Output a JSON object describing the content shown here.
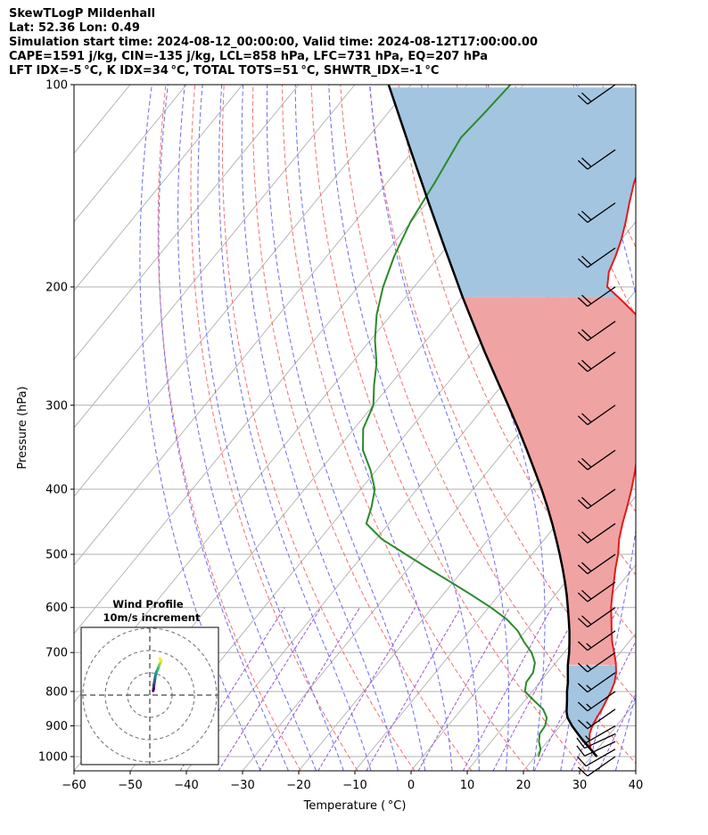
{
  "header": {
    "line1": "SkewTLogP Mildenhall",
    "line2": "Lat: 52.36   Lon: 0.49",
    "line3": "Simulation start time: 2024-08-12_00:00:00, Valid time: 2024-08-12T17:00:00.00",
    "line4": "CAPE=1591 j/kg, CIN=-135 j/kg, LCL=858 hPa, LFC=731 hPa, EQ=207 hPa",
    "line5": "LFT IDX=-5 °C, K IDX=34 °C, TOTAL TOTS=51 °C, SHWTR_IDX=-1 °C"
  },
  "chart_data": {
    "type": "line",
    "xlabel": "Temperature ( °C)",
    "ylabel": "Pressure (hPa)",
    "xlim": [
      -60,
      40
    ],
    "ylim": [
      1050,
      100
    ],
    "y_scale": "log",
    "x_ticks": [
      "−60",
      "−50",
      "−40",
      "−30",
      "−20",
      "−10",
      "0",
      "10",
      "20",
      "30",
      "40"
    ],
    "x_tick_values": [
      -60,
      -50,
      -40,
      -30,
      -20,
      -10,
      0,
      10,
      20,
      30,
      40
    ],
    "y_ticks": [
      "1000",
      "900",
      "800",
      "700",
      "600",
      "500",
      "400",
      "300",
      "200",
      "100"
    ],
    "y_tick_values": [
      1000,
      900,
      800,
      700,
      600,
      500,
      400,
      300,
      200,
      100
    ],
    "grid": true,
    "colors": {
      "temperature": "#e41a1c",
      "dewpoint": "#2a8a2a",
      "parcel": "#000000",
      "cape_fill": "#f0a3a3",
      "cin_fill": "#a3c5e0",
      "dry_adiabats": "#f07070",
      "moist_adiabats": "#6b6bf0",
      "mixing_ratio": "#9b59d0",
      "isotherms": "#b0b0b0"
    },
    "series": [
      {
        "role": "temperature",
        "points": [
          [
            1000,
            31
          ],
          [
            975,
            28.8
          ],
          [
            950,
            27.5
          ],
          [
            925,
            26.4
          ],
          [
            900,
            25.7
          ],
          [
            875,
            25.3
          ],
          [
            850,
            25
          ],
          [
            825,
            24.5
          ],
          [
            800,
            24
          ],
          [
            775,
            23.3
          ],
          [
            750,
            22.2
          ],
          [
            725,
            20.7
          ],
          [
            700,
            18.9
          ],
          [
            675,
            17
          ],
          [
            650,
            15.3
          ],
          [
            625,
            13.6
          ],
          [
            600,
            11.8
          ],
          [
            575,
            10.2
          ],
          [
            550,
            8.6
          ],
          [
            525,
            6.9
          ],
          [
            500,
            5.3
          ],
          [
            475,
            3.3
          ],
          [
            450,
            1.6
          ],
          [
            425,
            0
          ],
          [
            400,
            -1.8
          ],
          [
            375,
            -3.9
          ],
          [
            350,
            -6.3
          ],
          [
            325,
            -8.9
          ],
          [
            300,
            -11.8
          ],
          [
            275,
            -14.9
          ],
          [
            250,
            -18.7
          ],
          [
            240,
            -20.6
          ],
          [
            230,
            -23
          ],
          [
            220,
            -26.4
          ],
          [
            210,
            -30.8
          ],
          [
            200,
            -35.6
          ],
          [
            190,
            -37.5
          ],
          [
            180,
            -38.6
          ],
          [
            170,
            -40
          ],
          [
            160,
            -41.8
          ],
          [
            150,
            -43.9
          ],
          [
            140,
            -46
          ],
          [
            130,
            -47.7
          ],
          [
            120,
            -49.4
          ],
          [
            110,
            -50.6
          ],
          [
            100,
            -51.9
          ]
        ]
      },
      {
        "role": "dewpoint",
        "points": [
          [
            1000,
            20.6
          ],
          [
            975,
            19.9
          ],
          [
            950,
            18.5
          ],
          [
            925,
            17.5
          ],
          [
            900,
            17.3
          ],
          [
            875,
            16.4
          ],
          [
            850,
            14.5
          ],
          [
            825,
            11.6
          ],
          [
            800,
            8.7
          ],
          [
            775,
            7.6
          ],
          [
            750,
            7.4
          ],
          [
            725,
            6.3
          ],
          [
            700,
            4.2
          ],
          [
            675,
            1.3
          ],
          [
            650,
            -1.4
          ],
          [
            625,
            -5
          ],
          [
            600,
            -9.6
          ],
          [
            575,
            -14.8
          ],
          [
            550,
            -20.4
          ],
          [
            525,
            -26.4
          ],
          [
            500,
            -32.5
          ],
          [
            475,
            -38.9
          ],
          [
            450,
            -44
          ],
          [
            425,
            -45.5
          ],
          [
            400,
            -47.5
          ],
          [
            375,
            -51
          ],
          [
            350,
            -55.3
          ],
          [
            325,
            -58.4
          ],
          [
            300,
            -60
          ],
          [
            280,
            -62.8
          ],
          [
            260,
            -65.5
          ],
          [
            240,
            -69.2
          ],
          [
            220,
            -72.6
          ],
          [
            200,
            -75.5
          ],
          [
            180,
            -78
          ],
          [
            160,
            -80.1
          ],
          [
            140,
            -81.5
          ],
          [
            120,
            -83.4
          ],
          [
            110,
            -82.8
          ],
          [
            100,
            -82.3
          ]
        ]
      },
      {
        "role": "parcel",
        "points": [
          [
            1000,
            31
          ],
          [
            975,
            28.8
          ],
          [
            950,
            26.5
          ],
          [
            925,
            24.3
          ],
          [
            900,
            22.1
          ],
          [
            875,
            20.1
          ],
          [
            858,
            19.1
          ],
          [
            825,
            17.5
          ],
          [
            800,
            16.2
          ],
          [
            775,
            15
          ],
          [
            750,
            13.6
          ],
          [
            731,
            12.5
          ],
          [
            700,
            10.9
          ],
          [
            675,
            9.4
          ],
          [
            650,
            7.8
          ],
          [
            625,
            6
          ],
          [
            600,
            4.1
          ],
          [
            575,
            2.1
          ],
          [
            550,
            -0.1
          ],
          [
            525,
            -2.5
          ],
          [
            500,
            -5.1
          ],
          [
            475,
            -7.9
          ],
          [
            450,
            -10.9
          ],
          [
            425,
            -14.2
          ],
          [
            400,
            -17.8
          ],
          [
            375,
            -21.8
          ],
          [
            350,
            -26.1
          ],
          [
            325,
            -30.8
          ],
          [
            300,
            -36
          ],
          [
            275,
            -41.7
          ],
          [
            250,
            -47.9
          ],
          [
            225,
            -54.6
          ],
          [
            207,
            -59.9
          ],
          [
            200,
            -62
          ],
          [
            175,
            -70.2
          ],
          [
            150,
            -79.6
          ],
          [
            125,
            -90.6
          ],
          [
            100,
            -104
          ]
        ]
      }
    ],
    "cin_layers": [
      [
        1000,
        731
      ],
      [
        207,
        100
      ]
    ],
    "cape_layer": [
      731,
      207
    ],
    "dry_adiabats_theta_K": [
      250,
      260,
      270,
      280,
      290,
      300,
      310,
      320,
      330,
      340,
      350,
      360,
      370,
      380,
      390,
      400,
      410,
      420,
      430,
      440,
      450,
      460,
      470,
      480
    ],
    "moist_adiabats_thetaw_C": [
      -30,
      -25,
      -20,
      -15,
      -10,
      -5,
      0,
      5,
      10,
      15,
      20,
      25,
      30,
      35,
      40
    ],
    "mixing_ratio_gkg": [
      0.1,
      0.2,
      0.4,
      1,
      2,
      4,
      7,
      10,
      16,
      24,
      32
    ],
    "wind_barbs": {
      "pressures": [
        1000,
        975,
        950,
        925,
        900,
        850,
        800,
        750,
        700,
        650,
        600,
        550,
        500,
        450,
        400,
        350,
        300,
        250,
        225,
        200,
        175,
        150,
        125,
        100
      ],
      "speed_kt": [
        10,
        12,
        12,
        15,
        15,
        15,
        15,
        15,
        18,
        18,
        20,
        20,
        20,
        20,
        20,
        20,
        20,
        20,
        20,
        20,
        20,
        20,
        20,
        20
      ],
      "direction_deg": [
        235,
        240,
        245,
        245,
        240,
        235,
        235,
        235,
        235,
        235,
        235,
        235,
        235,
        235,
        235,
        235,
        235,
        235,
        235,
        235,
        235,
        235,
        235,
        235
      ]
    },
    "hodograph": {
      "title_line1": "Wind Profile",
      "title_line2": "10m/s increment",
      "ring_increment_ms": 10,
      "rings": 3,
      "points_uv": [
        [
          4.3,
          9.6
        ],
        [
          4.6,
          9.8
        ],
        [
          4.9,
          10.2
        ],
        [
          5,
          10.6
        ],
        [
          5.1,
          10.8
        ],
        [
          5.2,
          11
        ],
        [
          5.3,
          11.2
        ],
        [
          5.4,
          11.3
        ],
        [
          5.6,
          11.7
        ],
        [
          5.9,
          12
        ],
        [
          6.1,
          12.5
        ],
        [
          6.3,
          12.8
        ],
        [
          6.5,
          13.2
        ],
        [
          6.6,
          13.6
        ],
        [
          6.8,
          13.8
        ],
        [
          6.9,
          14
        ],
        [
          7.1,
          14.2
        ],
        [
          7.4,
          14.8
        ],
        [
          7.8,
          15.5
        ],
        [
          8.2,
          16
        ],
        [
          8.7,
          16.5
        ],
        [
          9.3,
          17
        ],
        [
          10,
          17.3
        ],
        [
          10.4,
          17.6
        ],
        [
          10.8,
          17.9
        ],
        [
          11.3,
          18.2
        ],
        [
          11.6,
          18.4
        ],
        [
          12,
          18.5
        ],
        [
          12.5,
          18.7
        ],
        [
          13,
          18.8
        ],
        [
          13.6,
          18.6
        ],
        [
          14,
          18.2
        ],
        [
          14.3,
          17.8
        ],
        [
          14.5,
          17.5
        ],
        [
          14.3,
          17.1
        ],
        [
          13.6,
          16.4
        ],
        [
          13.3,
          16
        ],
        [
          12.9,
          15.5
        ]
      ]
    }
  }
}
